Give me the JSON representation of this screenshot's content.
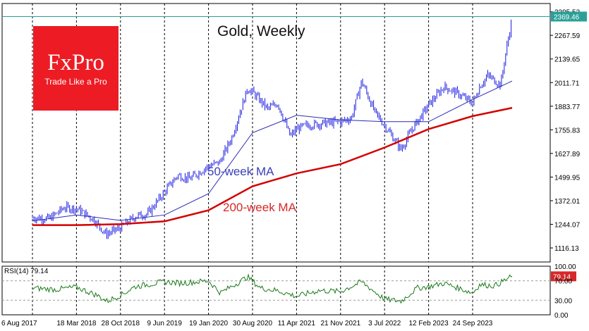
{
  "logo": {
    "name": "FxPro",
    "tagline": "Trade Like a Pro"
  },
  "chart_data": {
    "type": "line",
    "title": "Gold, Weekly",
    "price_panel": {
      "ylim": [
        1040,
        2440
      ],
      "y_ticks": [
        "2395.53",
        "2267.59",
        "2139.65",
        "2011.71",
        "1883.77",
        "1755.83",
        "1627.89",
        "1499.95",
        "1372.01",
        "1244.07",
        "1116.13"
      ],
      "current_price": "2369.46",
      "current_price_value": 2369.46,
      "series": [
        {
          "name": "Gold price",
          "style": "candles",
          "color": "#1a1ae0",
          "x": [
            "2017-08-06",
            "2017-11-01",
            "2018-01-15",
            "2018-03-18",
            "2018-06-15",
            "2018-08-15",
            "2018-10-28",
            "2019-01-15",
            "2019-03-15",
            "2019-06-09",
            "2019-08-15",
            "2019-10-15",
            "2020-01-19",
            "2020-03-15",
            "2020-05-15",
            "2020-08-05",
            "2020-08-30",
            "2020-11-15",
            "2021-01-05",
            "2021-03-10",
            "2021-04-11",
            "2021-06-01",
            "2021-08-15",
            "2021-11-21",
            "2022-01-15",
            "2022-03-08",
            "2022-05-15",
            "2022-07-03",
            "2022-09-25",
            "2022-11-20",
            "2023-02-12",
            "2023-05-01",
            "2023-07-15",
            "2023-09-24",
            "2023-10-30",
            "2023-12-10",
            "2024-02-14",
            "2024-03-10",
            "2024-04-12"
          ],
          "y": [
            1280,
            1275,
            1335,
            1330,
            1270,
            1190,
            1225,
            1290,
            1300,
            1420,
            1510,
            1490,
            1560,
            1580,
            1710,
            1980,
            1960,
            1870,
            1900,
            1720,
            1760,
            1780,
            1790,
            1800,
            1820,
            2020,
            1850,
            1780,
            1650,
            1760,
            1890,
            1990,
            1950,
            1900,
            1990,
            2050,
            2000,
            2170,
            2360
          ]
        },
        {
          "name": "50-week MA",
          "color": "#2b2bb8",
          "x": [
            "2017-08-06",
            "2018-03-18",
            "2018-10-28",
            "2019-06-09",
            "2020-01-19",
            "2020-08-30",
            "2021-04-11",
            "2021-11-21",
            "2022-07-03",
            "2023-02-12",
            "2023-09-24",
            "2024-04-12"
          ],
          "y": [
            1262,
            1295,
            1265,
            1295,
            1410,
            1740,
            1835,
            1810,
            1800,
            1800,
            1920,
            2020
          ]
        },
        {
          "name": "200-week MA",
          "color": "#d40000",
          "x": [
            "2017-08-06",
            "2018-03-18",
            "2018-10-28",
            "2019-06-09",
            "2020-01-19",
            "2020-08-30",
            "2021-04-11",
            "2021-11-21",
            "2022-07-03",
            "2023-02-12",
            "2023-09-24",
            "2024-04-12"
          ],
          "y": [
            1240,
            1240,
            1245,
            1260,
            1320,
            1450,
            1520,
            1570,
            1660,
            1760,
            1830,
            1875
          ]
        }
      ],
      "annotations": [
        "50-week MA",
        "200-week MA"
      ]
    },
    "rsi_panel": {
      "label": "RSI(14) 79.14",
      "ylim": [
        0,
        100
      ],
      "y_ticks": [
        "100.00",
        "70.00",
        "30.00",
        "0.00"
      ],
      "levels": [
        70,
        30
      ],
      "current_value": "79.14",
      "series": [
        {
          "name": "RSI(14)",
          "color": "#1a7a1a",
          "x": [
            "2017-08-06",
            "2017-12-01",
            "2018-03-18",
            "2018-07-01",
            "2018-08-20",
            "2018-10-28",
            "2019-01-10",
            "2019-06-09",
            "2019-09-01",
            "2020-01-19",
            "2020-03-20",
            "2020-08-05",
            "2020-10-10",
            "2021-01-01",
            "2021-04-11",
            "2021-08-01",
            "2021-11-21",
            "2022-03-08",
            "2022-07-03",
            "2022-09-25",
            "2022-12-15",
            "2023-02-12",
            "2023-05-01",
            "2023-07-15",
            "2023-09-24",
            "2023-10-30",
            "2024-01-15",
            "2024-04-12"
          ],
          "y": [
            55,
            52,
            57,
            40,
            28,
            40,
            58,
            68,
            65,
            70,
            45,
            78,
            55,
            50,
            38,
            50,
            48,
            68,
            32,
            28,
            55,
            58,
            65,
            55,
            45,
            62,
            60,
            79.14
          ]
        }
      ]
    },
    "x_ticks": [
      "6 Aug 2017",
      "18 Mar 2018",
      "28 Oct 2018",
      "9 Jun 2019",
      "19 Jan 2020",
      "30 Aug 2020",
      "11 Apr 2021",
      "21 Nov 2021",
      "3 Jul 2022",
      "12 Feb 2023",
      "24 Sep 2023"
    ],
    "x_tick_dates": [
      "2017-08-06",
      "2018-03-18",
      "2018-10-28",
      "2019-06-09",
      "2020-01-19",
      "2020-08-30",
      "2021-04-11",
      "2021-11-21",
      "2022-07-03",
      "2023-02-12",
      "2023-09-24"
    ],
    "grid": "vertical dashed"
  }
}
